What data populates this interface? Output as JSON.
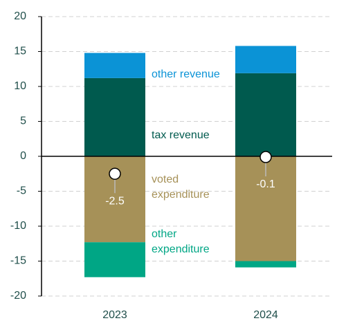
{
  "chart_data": {
    "type": "bar",
    "stacked": true,
    "categories": [
      "2023",
      "2024"
    ],
    "series": [
      {
        "name": "tax revenue",
        "color": "#005a4e",
        "values": [
          11.2,
          11.9
        ]
      },
      {
        "name": "other revenue",
        "color": "#0b93d6",
        "values": [
          3.6,
          3.9
        ]
      },
      {
        "name": "voted expenditure",
        "color": "#a69158",
        "values": [
          -12.3,
          -15.0
        ]
      },
      {
        "name": "other expenditure",
        "color": "#00a685",
        "values": [
          -5.0,
          -0.9
        ]
      }
    ],
    "net_values": [
      -2.5,
      -0.1
    ],
    "ylim": [
      -20,
      20
    ],
    "yticks": [
      -20,
      -15,
      -10,
      -5,
      0,
      5,
      10,
      15,
      20
    ],
    "grid": true
  }
}
